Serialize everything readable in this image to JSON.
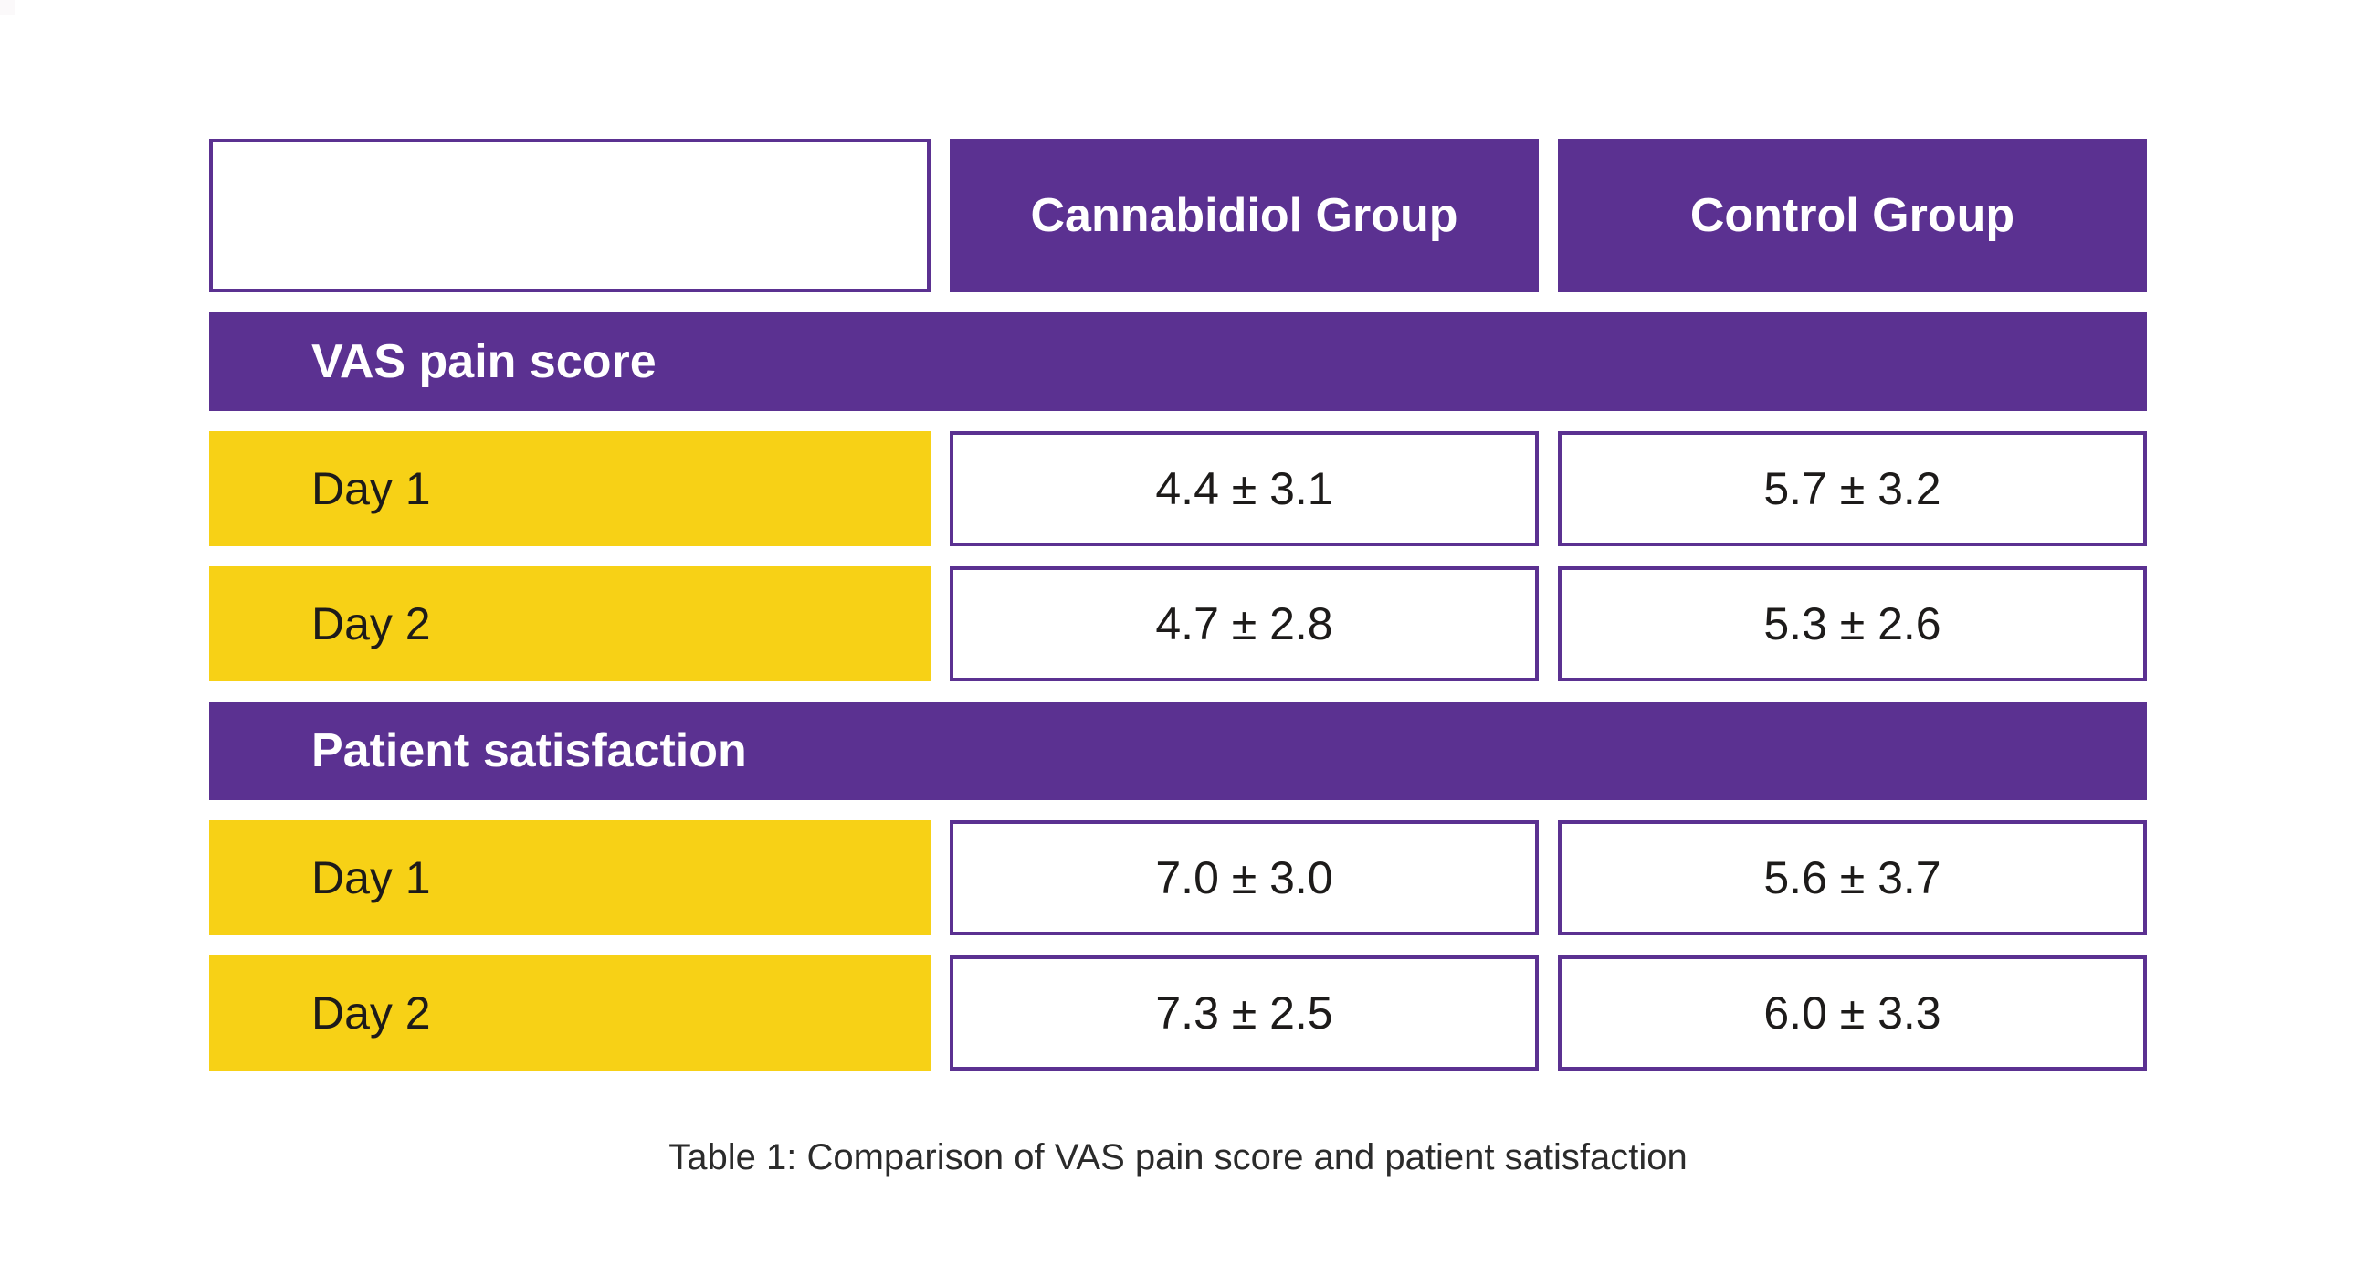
{
  "table": {
    "columns": [
      "",
      "Cannabidiol Group",
      "Control Group"
    ],
    "sections": [
      {
        "title": "VAS pain score",
        "rows": [
          {
            "label": "Day 1",
            "values": [
              "4.4 ± 3.1",
              "5.7 ± 3.2"
            ]
          },
          {
            "label": "Day 2",
            "values": [
              "4.7 ± 2.8",
              "5.3 ± 2.6"
            ]
          }
        ]
      },
      {
        "title": "Patient satisfaction",
        "rows": [
          {
            "label": "Day 1",
            "values": [
              "7.0 ± 3.0",
              "5.6 ± 3.7"
            ]
          },
          {
            "label": "Day 2",
            "values": [
              "7.3 ± 2.5",
              "6.0 ± 3.3"
            ]
          }
        ]
      }
    ]
  },
  "caption": "Table 1: Comparison of VAS pain score and patient satisfaction",
  "colors": {
    "header_purple": "#5b3191",
    "row_yellow": "#f7d116",
    "cell_border_purple": "#5b3191",
    "header_text": "#ffffff",
    "body_text": "#1d1b1a",
    "caption_text": "#2b2b2b",
    "background": "#ffffff"
  },
  "chart_data": {
    "type": "table",
    "title": "Table 1: Comparison of VAS pain score and patient satisfaction",
    "columns": [
      "Cannabidiol Group",
      "Control Group"
    ],
    "row_groups": [
      {
        "group": "VAS pain score",
        "rows": [
          {
            "label": "Day 1",
            "values": {
              "Cannabidiol Group": "4.4 ± 3.1",
              "Control Group": "5.7 ± 3.2"
            }
          },
          {
            "label": "Day 2",
            "values": {
              "Cannabidiol Group": "4.7 ± 2.8",
              "Control Group": "5.3 ± 2.6"
            }
          }
        ]
      },
      {
        "group": "Patient satisfaction",
        "rows": [
          {
            "label": "Day 1",
            "values": {
              "Cannabidiol Group": "7.0 ± 3.0",
              "Control Group": "5.6 ± 3.7"
            }
          },
          {
            "label": "Day 2",
            "values": {
              "Cannabidiol Group": "7.3 ± 2.5",
              "Control Group": "6.0 ± 3.3"
            }
          }
        ]
      }
    ],
    "layout": {
      "grid": false,
      "legend": "none",
      "values_format": "mean ± sd"
    }
  }
}
